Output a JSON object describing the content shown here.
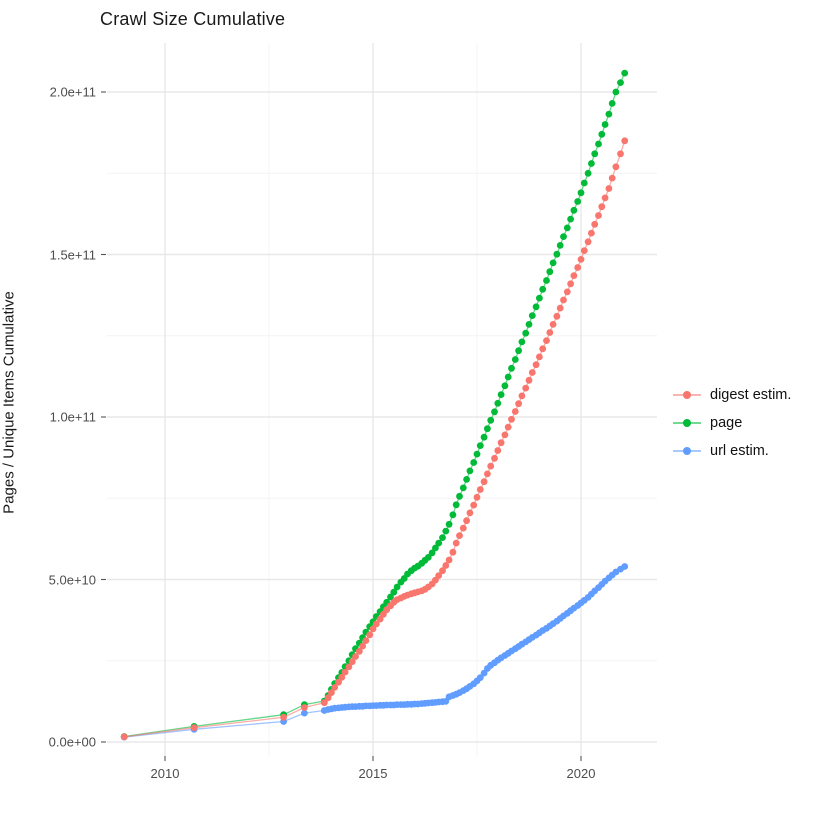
{
  "chart_data": {
    "type": "line-scatter",
    "title": "Crawl Size Cumulative",
    "xlabel": "",
    "ylabel": "Pages / Unique Items Cumulative",
    "grid": true,
    "legend_position": "right",
    "value_unit_note": "values stored in billions (1e9); y tick labels shown in scientific notation",
    "x_axis": {
      "ticks": [
        {
          "label": "2010",
          "year": 2010
        },
        {
          "label": "2015",
          "year": 2015
        },
        {
          "label": "2020",
          "year": 2020
        }
      ],
      "minor_years": [
        2012.5,
        2017.5
      ],
      "range_years": [
        2008.6,
        2021.8
      ]
    },
    "y_axis": {
      "ticks": [
        {
          "label": "0.0e+00",
          "value_e9": 0
        },
        {
          "label": "5.0e+10",
          "value_e9": 50
        },
        {
          "label": "1.0e+11",
          "value_e9": 100
        },
        {
          "label": "1.5e+11",
          "value_e9": 150
        },
        {
          "label": "2.0e+11",
          "value_e9": 200
        }
      ],
      "minor_values_e9": [
        25,
        75,
        125,
        175
      ],
      "range_e9": [
        -5.5,
        215
      ]
    },
    "draw_order": [
      2,
      1,
      0
    ],
    "series": [
      {
        "name": "digest estim.",
        "color": "#F8766D",
        "points_year_value_e9": [
          [
            2009.02,
            1.6
          ],
          [
            2010.7,
            4.4
          ],
          [
            2012.85,
            7.6
          ],
          [
            2013.35,
            10.6
          ],
          [
            2013.83,
            12.1
          ],
          [
            2013.92,
            13.6
          ],
          [
            2014.0,
            15.2
          ],
          [
            2014.08,
            16.8
          ],
          [
            2014.17,
            18.4
          ],
          [
            2014.25,
            19.9
          ],
          [
            2014.33,
            21.5
          ],
          [
            2014.42,
            23.1
          ],
          [
            2014.5,
            24.7
          ],
          [
            2014.58,
            26.3
          ],
          [
            2014.67,
            27.9
          ],
          [
            2014.75,
            29.5
          ],
          [
            2014.83,
            31.2
          ],
          [
            2014.92,
            33.0
          ],
          [
            2015.0,
            34.8
          ],
          [
            2015.08,
            36.3
          ],
          [
            2015.17,
            37.8
          ],
          [
            2015.25,
            39.3
          ],
          [
            2015.33,
            40.7
          ],
          [
            2015.42,
            41.9
          ],
          [
            2015.5,
            43.0
          ],
          [
            2015.58,
            43.8
          ],
          [
            2015.67,
            44.3
          ],
          [
            2015.75,
            44.8
          ],
          [
            2015.83,
            45.2
          ],
          [
            2015.92,
            45.6
          ],
          [
            2016.0,
            45.9
          ],
          [
            2016.08,
            46.2
          ],
          [
            2016.17,
            46.5
          ],
          [
            2016.25,
            47.0
          ],
          [
            2016.33,
            47.7
          ],
          [
            2016.42,
            48.6
          ],
          [
            2016.5,
            49.8
          ],
          [
            2016.58,
            51.2
          ],
          [
            2016.67,
            52.7
          ],
          [
            2016.75,
            54.3
          ],
          [
            2016.83,
            56.0
          ],
          [
            2016.92,
            58.4
          ],
          [
            2017.0,
            61.2
          ],
          [
            2017.08,
            63.5
          ],
          [
            2017.17,
            65.8
          ],
          [
            2017.25,
            68.1
          ],
          [
            2017.33,
            70.5
          ],
          [
            2017.42,
            72.9
          ],
          [
            2017.5,
            75.3
          ],
          [
            2017.58,
            77.7
          ],
          [
            2017.67,
            80.1
          ],
          [
            2017.75,
            82.5
          ],
          [
            2017.83,
            84.9
          ],
          [
            2017.92,
            87.3
          ],
          [
            2018.0,
            89.7
          ],
          [
            2018.08,
            92.1
          ],
          [
            2018.17,
            94.5
          ],
          [
            2018.25,
            96.9
          ],
          [
            2018.33,
            99.3
          ],
          [
            2018.42,
            101.7
          ],
          [
            2018.5,
            104.1
          ],
          [
            2018.58,
            106.5
          ],
          [
            2018.67,
            108.9
          ],
          [
            2018.75,
            111.3
          ],
          [
            2018.83,
            113.7
          ],
          [
            2018.92,
            116.1
          ],
          [
            2019.0,
            118.5
          ],
          [
            2019.08,
            121.0
          ],
          [
            2019.17,
            123.5
          ],
          [
            2019.25,
            126.0
          ],
          [
            2019.33,
            128.5
          ],
          [
            2019.42,
            131.0
          ],
          [
            2019.5,
            133.5
          ],
          [
            2019.58,
            136.0
          ],
          [
            2019.67,
            138.5
          ],
          [
            2019.75,
            141.0
          ],
          [
            2019.83,
            143.5
          ],
          [
            2019.92,
            146.0
          ],
          [
            2020.0,
            148.5
          ],
          [
            2020.08,
            151.2
          ],
          [
            2020.17,
            153.9
          ],
          [
            2020.25,
            156.6
          ],
          [
            2020.33,
            159.3
          ],
          [
            2020.42,
            162.0
          ],
          [
            2020.5,
            164.7
          ],
          [
            2020.58,
            167.4
          ],
          [
            2020.67,
            170.3
          ],
          [
            2020.75,
            173.5
          ],
          [
            2020.84,
            177.0
          ],
          [
            2020.95,
            181.0
          ],
          [
            2021.05,
            185.0
          ]
        ]
      },
      {
        "name": "page",
        "color": "#00BA38",
        "points_year_value_e9": [
          [
            2009.02,
            1.7
          ],
          [
            2010.7,
            4.8
          ],
          [
            2012.85,
            8.4
          ],
          [
            2013.35,
            11.5
          ],
          [
            2013.83,
            12.6
          ],
          [
            2013.92,
            14.3
          ],
          [
            2014.0,
            16.2
          ],
          [
            2014.08,
            18.0
          ],
          [
            2014.17,
            19.8
          ],
          [
            2014.25,
            21.4
          ],
          [
            2014.33,
            23.2
          ],
          [
            2014.42,
            25.0
          ],
          [
            2014.5,
            26.9
          ],
          [
            2014.58,
            28.7
          ],
          [
            2014.67,
            30.4
          ],
          [
            2014.75,
            32.1
          ],
          [
            2014.83,
            33.8
          ],
          [
            2014.92,
            35.5
          ],
          [
            2015.0,
            37.0
          ],
          [
            2015.08,
            38.6
          ],
          [
            2015.17,
            40.1
          ],
          [
            2015.25,
            41.6
          ],
          [
            2015.33,
            43.0
          ],
          [
            2015.42,
            44.6
          ],
          [
            2015.5,
            46.1
          ],
          [
            2015.58,
            47.7
          ],
          [
            2015.67,
            49.2
          ],
          [
            2015.75,
            50.3
          ],
          [
            2015.83,
            51.7
          ],
          [
            2015.92,
            52.7
          ],
          [
            2016.0,
            53.5
          ],
          [
            2016.08,
            54.1
          ],
          [
            2016.17,
            55.0
          ],
          [
            2016.25,
            55.9
          ],
          [
            2016.33,
            56.8
          ],
          [
            2016.42,
            58.2
          ],
          [
            2016.5,
            59.7
          ],
          [
            2016.58,
            61.2
          ],
          [
            2016.67,
            62.9
          ],
          [
            2016.75,
            64.9
          ],
          [
            2016.83,
            67.0
          ],
          [
            2016.92,
            69.9
          ],
          [
            2017.0,
            73.0
          ],
          [
            2017.08,
            75.6
          ],
          [
            2017.17,
            78.2
          ],
          [
            2017.25,
            80.8
          ],
          [
            2017.33,
            83.4
          ],
          [
            2017.42,
            86.0
          ],
          [
            2017.5,
            88.6
          ],
          [
            2017.58,
            91.2
          ],
          [
            2017.67,
            93.8
          ],
          [
            2017.75,
            96.4
          ],
          [
            2017.83,
            99.0
          ],
          [
            2017.92,
            101.6
          ],
          [
            2018.0,
            104.2
          ],
          [
            2018.08,
            106.9
          ],
          [
            2018.17,
            109.6
          ],
          [
            2018.25,
            112.3
          ],
          [
            2018.33,
            115.0
          ],
          [
            2018.42,
            117.7
          ],
          [
            2018.5,
            120.4
          ],
          [
            2018.58,
            123.1
          ],
          [
            2018.67,
            125.8
          ],
          [
            2018.75,
            128.5
          ],
          [
            2018.83,
            131.2
          ],
          [
            2018.92,
            133.9
          ],
          [
            2019.0,
            136.6
          ],
          [
            2019.08,
            139.3
          ],
          [
            2019.17,
            142.0
          ],
          [
            2019.25,
            144.7
          ],
          [
            2019.33,
            147.4
          ],
          [
            2019.42,
            150.1
          ],
          [
            2019.5,
            152.8
          ],
          [
            2019.58,
            155.5
          ],
          [
            2019.67,
            158.2
          ],
          [
            2019.75,
            160.9
          ],
          [
            2019.83,
            163.6
          ],
          [
            2019.92,
            166.3
          ],
          [
            2020.0,
            169.0
          ],
          [
            2020.08,
            172.0
          ],
          [
            2020.17,
            175.0
          ],
          [
            2020.25,
            178.0
          ],
          [
            2020.33,
            181.0
          ],
          [
            2020.42,
            184.0
          ],
          [
            2020.5,
            187.0
          ],
          [
            2020.58,
            190.0
          ],
          [
            2020.67,
            193.2
          ],
          [
            2020.75,
            196.5
          ],
          [
            2020.84,
            200.0
          ],
          [
            2020.95,
            202.9
          ],
          [
            2021.05,
            205.8
          ]
        ]
      },
      {
        "name": "url estim.",
        "color": "#619CFF",
        "points_year_value_e9": [
          [
            2009.02,
            1.5
          ],
          [
            2010.7,
            3.9
          ],
          [
            2012.85,
            6.3
          ],
          [
            2013.35,
            8.9
          ],
          [
            2013.83,
            9.7
          ],
          [
            2013.92,
            10.0
          ],
          [
            2014.0,
            10.2
          ],
          [
            2014.08,
            10.4
          ],
          [
            2014.17,
            10.5
          ],
          [
            2014.25,
            10.6
          ],
          [
            2014.33,
            10.7
          ],
          [
            2014.42,
            10.8
          ],
          [
            2014.5,
            10.9
          ],
          [
            2014.58,
            10.9
          ],
          [
            2014.67,
            11.0
          ],
          [
            2014.75,
            11.0
          ],
          [
            2014.83,
            11.1
          ],
          [
            2014.92,
            11.1
          ],
          [
            2015.0,
            11.2
          ],
          [
            2015.08,
            11.2
          ],
          [
            2015.17,
            11.3
          ],
          [
            2015.25,
            11.3
          ],
          [
            2015.33,
            11.4
          ],
          [
            2015.42,
            11.4
          ],
          [
            2015.5,
            11.4
          ],
          [
            2015.58,
            11.5
          ],
          [
            2015.67,
            11.5
          ],
          [
            2015.75,
            11.5
          ],
          [
            2015.83,
            11.6
          ],
          [
            2015.92,
            11.6
          ],
          [
            2016.0,
            11.7
          ],
          [
            2016.08,
            11.7
          ],
          [
            2016.17,
            11.8
          ],
          [
            2016.25,
            11.9
          ],
          [
            2016.33,
            12.0
          ],
          [
            2016.42,
            12.1
          ],
          [
            2016.5,
            12.2
          ],
          [
            2016.58,
            12.3
          ],
          [
            2016.67,
            12.4
          ],
          [
            2016.75,
            12.5
          ],
          [
            2016.83,
            13.9
          ],
          [
            2016.92,
            14.3
          ],
          [
            2017.0,
            14.7
          ],
          [
            2017.08,
            15.2
          ],
          [
            2017.17,
            15.8
          ],
          [
            2017.25,
            16.4
          ],
          [
            2017.33,
            17.1
          ],
          [
            2017.42,
            17.9
          ],
          [
            2017.5,
            18.8
          ],
          [
            2017.58,
            19.8
          ],
          [
            2017.67,
            21.2
          ],
          [
            2017.75,
            22.6
          ],
          [
            2017.83,
            23.6
          ],
          [
            2017.92,
            24.4
          ],
          [
            2018.0,
            25.2
          ],
          [
            2018.08,
            25.9
          ],
          [
            2018.17,
            26.6
          ],
          [
            2018.25,
            27.3
          ],
          [
            2018.33,
            28.0
          ],
          [
            2018.42,
            28.7
          ],
          [
            2018.5,
            29.4
          ],
          [
            2018.58,
            30.1
          ],
          [
            2018.67,
            30.8
          ],
          [
            2018.75,
            31.5
          ],
          [
            2018.83,
            32.2
          ],
          [
            2018.92,
            32.9
          ],
          [
            2019.0,
            33.6
          ],
          [
            2019.08,
            34.3
          ],
          [
            2019.17,
            35.0
          ],
          [
            2019.25,
            35.7
          ],
          [
            2019.33,
            36.4
          ],
          [
            2019.42,
            37.2
          ],
          [
            2019.5,
            38.0
          ],
          [
            2019.58,
            38.8
          ],
          [
            2019.67,
            39.6
          ],
          [
            2019.75,
            40.4
          ],
          [
            2019.83,
            41.2
          ],
          [
            2019.92,
            42.0
          ],
          [
            2020.0,
            42.8
          ],
          [
            2020.08,
            43.6
          ],
          [
            2020.17,
            44.5
          ],
          [
            2020.25,
            45.5
          ],
          [
            2020.33,
            46.5
          ],
          [
            2020.42,
            47.5
          ],
          [
            2020.5,
            48.5
          ],
          [
            2020.58,
            49.5
          ],
          [
            2020.67,
            50.5
          ],
          [
            2020.75,
            51.4
          ],
          [
            2020.84,
            52.3
          ],
          [
            2020.95,
            53.2
          ],
          [
            2021.05,
            54.0
          ]
        ]
      }
    ],
    "style": {
      "grid_major_color": "#E8E8E8",
      "grid_minor_color": "#F4F4F4",
      "tick_mark_color": "#555555",
      "point_radius": 3.4,
      "line_opacity": 0.6
    }
  }
}
